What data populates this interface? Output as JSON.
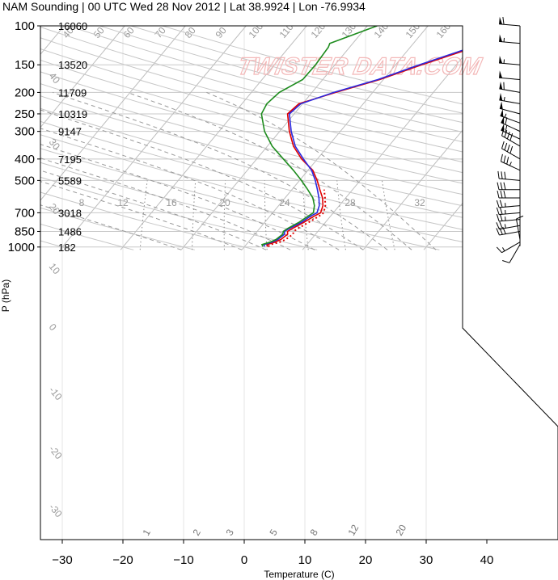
{
  "chart_data": {
    "type": "line",
    "title": "NAM Sounding | 00 UTC Wed 28 Nov 2012 | Lat 38.9924 | Lon -76.9934",
    "xlabel": "Temperature (C)",
    "ylabel": "P (hPa)",
    "xlim": [
      -34,
      46
    ],
    "ylim": [
      1030,
      100
    ],
    "y_scale": "log",
    "x_ticks": [
      "−30",
      "−20",
      "−10",
      "0",
      "10",
      "20",
      "30",
      "40"
    ],
    "x_tick_values": [
      -30,
      -20,
      -10,
      0,
      10,
      20,
      30,
      40
    ],
    "p_levels": [
      100,
      150,
      200,
      250,
      300,
      400,
      500,
      700,
      850,
      1000
    ],
    "p_labels": [
      "100",
      "150",
      "200",
      "250",
      "300",
      "400",
      "500",
      "700",
      "850",
      "1000"
    ],
    "heights": [
      "16060",
      "13520",
      "11709",
      "10319",
      "9147",
      "7195",
      "5589",
      "3018",
      "1486",
      "182"
    ],
    "isotherm_labels": [
      "40",
      "50",
      "60",
      "70",
      "80",
      "90",
      "100",
      "110",
      "120",
      "130",
      "140",
      "150",
      "160"
    ],
    "dry_adiabat_labels": [
      "40",
      "30",
      "20",
      "10",
      "0",
      "-10",
      "-20",
      "-30"
    ],
    "moist_adiabat_labels": [
      "30",
      "20",
      "10",
      "0",
      "10",
      "20",
      "30"
    ],
    "mixing_ratio_labels": [
      "1",
      "2",
      "3",
      "5",
      "8",
      "12",
      "20"
    ],
    "theta_e_labels": [
      "8",
      "12",
      "16",
      "20",
      "24",
      "28",
      "32"
    ],
    "watermark": "TWISTER DATA.COM",
    "series": [
      {
        "name": "",
        "color": "#e00000",
        "style": "solid",
        "points": [
          [
            3.8,
            995
          ],
          [
            3.4,
            975
          ],
          [
            4.4,
            950
          ],
          [
            5.0,
            925
          ],
          [
            5.4,
            875
          ],
          [
            5.0,
            850
          ],
          [
            5.4,
            825
          ],
          [
            6.4,
            775
          ],
          [
            7.3,
            725
          ],
          [
            7.9,
            700
          ],
          [
            7.3,
            650
          ],
          [
            6.2,
            600
          ],
          [
            4.6,
            550
          ],
          [
            2.9,
            500
          ],
          [
            0.8,
            450
          ],
          [
            -2.6,
            400
          ],
          [
            -5.7,
            350
          ],
          [
            -8.4,
            300
          ],
          [
            -11.1,
            250
          ],
          [
            -10.6,
            225
          ],
          [
            -6.1,
            200
          ],
          [
            -0.6,
            175
          ],
          [
            4.3,
            150
          ],
          [
            10.6,
            125
          ],
          [
            12.1,
            110
          ],
          [
            13.3,
            100
          ]
        ]
      },
      {
        "name": "",
        "color": "#2a2ae0",
        "style": "solid",
        "points": [
          [
            3.3,
            995
          ],
          [
            2.9,
            975
          ],
          [
            3.9,
            950
          ],
          [
            4.5,
            925
          ],
          [
            4.9,
            875
          ],
          [
            4.5,
            850
          ],
          [
            4.9,
            825
          ],
          [
            6.0,
            775
          ],
          [
            6.7,
            725
          ],
          [
            7.3,
            700
          ],
          [
            6.7,
            650
          ],
          [
            5.6,
            600
          ],
          [
            4.2,
            550
          ],
          [
            2.6,
            500
          ],
          [
            0.6,
            450
          ],
          [
            -2.3,
            400
          ],
          [
            -5.4,
            350
          ],
          [
            -8.1,
            300
          ],
          [
            -10.8,
            250
          ],
          [
            -10.3,
            225
          ],
          [
            -6.4,
            200
          ],
          [
            -0.9,
            175
          ],
          [
            3.9,
            150
          ],
          [
            10.1,
            125
          ],
          [
            11.6,
            110
          ],
          [
            12.8,
            100
          ]
        ]
      },
      {
        "name": "",
        "color": "#e00000",
        "style": "dotted",
        "points": [
          [
            3.9,
            995
          ],
          [
            4.0,
            975
          ],
          [
            5.2,
            950
          ],
          [
            5.8,
            925
          ],
          [
            6.3,
            875
          ],
          [
            6.0,
            850
          ],
          [
            6.3,
            825
          ],
          [
            7.2,
            775
          ],
          [
            8.1,
            725
          ],
          [
            8.4,
            700
          ],
          [
            7.7,
            650
          ],
          [
            6.6,
            600
          ],
          [
            5.3,
            550
          ]
        ]
      },
      {
        "name": "",
        "color": "#1e8c1e",
        "style": "solid",
        "points": [
          [
            3.0,
            995
          ],
          [
            2.6,
            975
          ],
          [
            3.6,
            950
          ],
          [
            4.2,
            925
          ],
          [
            4.6,
            875
          ],
          [
            4.3,
            850
          ],
          [
            4.6,
            825
          ],
          [
            5.6,
            775
          ],
          [
            6.3,
            725
          ],
          [
            6.7,
            700
          ],
          [
            5.9,
            650
          ],
          [
            4.6,
            600
          ],
          [
            2.6,
            550
          ],
          [
            0.3,
            500
          ],
          [
            -2.4,
            450
          ],
          [
            -5.6,
            400
          ],
          [
            -9.2,
            350
          ],
          [
            -12.5,
            300
          ],
          [
            -15.4,
            250
          ],
          [
            -15.9,
            225
          ],
          [
            -15.4,
            200
          ],
          [
            -13.3,
            175
          ],
          [
            -13.2,
            150
          ],
          [
            -13.5,
            125
          ],
          [
            -13.8,
            120
          ],
          [
            -8.4,
            100
          ]
        ]
      }
    ],
    "wind_barbs": [
      {
        "p": 100,
        "dir": 275,
        "spd": 60
      },
      {
        "p": 120,
        "dir": 275,
        "spd": 55
      },
      {
        "p": 150,
        "dir": 275,
        "spd": 55
      },
      {
        "p": 175,
        "dir": 275,
        "spd": 50
      },
      {
        "p": 200,
        "dir": 280,
        "spd": 60
      },
      {
        "p": 225,
        "dir": 280,
        "spd": 55
      },
      {
        "p": 250,
        "dir": 285,
        "spd": 50
      },
      {
        "p": 275,
        "dir": 290,
        "spd": 55
      },
      {
        "p": 300,
        "dir": 295,
        "spd": 60
      },
      {
        "p": 325,
        "dir": 295,
        "spd": 60
      },
      {
        "p": 350,
        "dir": 300,
        "spd": 40
      },
      {
        "p": 400,
        "dir": 300,
        "spd": 40
      },
      {
        "p": 450,
        "dir": 295,
        "spd": 35
      },
      {
        "p": 500,
        "dir": 275,
        "spd": 30
      },
      {
        "p": 550,
        "dir": 270,
        "spd": 30
      },
      {
        "p": 600,
        "dir": 270,
        "spd": 30
      },
      {
        "p": 650,
        "dir": 265,
        "spd": 25
      },
      {
        "p": 700,
        "dir": 265,
        "spd": 25
      },
      {
        "p": 750,
        "dir": 265,
        "spd": 25
      },
      {
        "p": 800,
        "dir": 260,
        "spd": 25
      },
      {
        "p": 850,
        "dir": 260,
        "spd": 30
      },
      {
        "p": 925,
        "dir": 350,
        "spd": 10
      },
      {
        "p": 950,
        "dir": 240,
        "spd": 15
      },
      {
        "p": 975,
        "dir": 210,
        "spd": 10
      }
    ]
  }
}
